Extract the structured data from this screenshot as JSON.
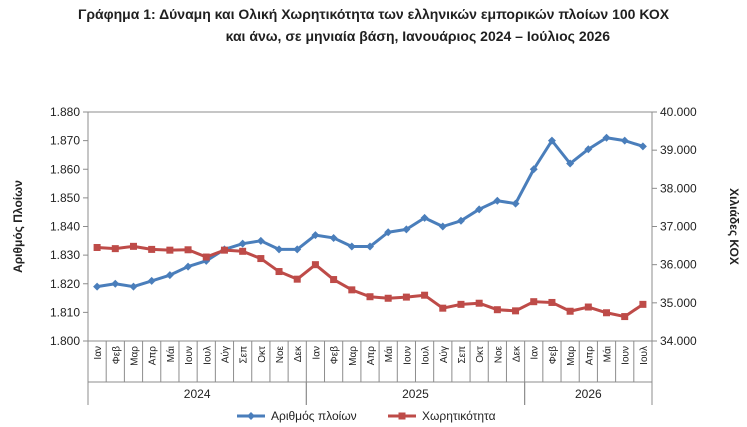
{
  "chart_data": {
    "type": "line",
    "title": "Γράφημα 1: Δύναμη και Ολική Χωρητικότητα των ελληνικών εμπορικών πλοίων 100 ΚΟΧ",
    "subtitle": "και άνω, σε μηνιαία βάση, Ιανουάριος 2024 – Ιούλιος 2026",
    "ylabel_left": "Αριθμός Πλοίων",
    "ylabel_right": "Χιλιάδες ΚΟΧ",
    "ylim_left": [
      1800,
      1880
    ],
    "ylim_right": [
      34000,
      40000
    ],
    "yticks_left": [
      "1.800",
      "1.810",
      "1.820",
      "1.830",
      "1.840",
      "1.850",
      "1.860",
      "1.870",
      "1.880"
    ],
    "yticks_right": [
      "34.000",
      "35.000",
      "36.000",
      "37.000",
      "38.000",
      "39.000",
      "40.000"
    ],
    "months": [
      "Ιαν",
      "Φεβ",
      "Μαρ",
      "Απρ",
      "Μάι",
      "Ιουν",
      "Ιουλ",
      "Αύγ",
      "Σεπ",
      "Οκτ",
      "Νοε",
      "Δεκ",
      "Ιαν",
      "Φεβ",
      "Μαρ",
      "Απρ",
      "Μάι",
      "Ιουν",
      "Ιουλ",
      "Αύγ",
      "Σεπ",
      "Οκτ",
      "Νοε",
      "Δεκ",
      "Ιαν",
      "Φεβ",
      "Μαρ",
      "Απρ",
      "Μάι",
      "Ιουν",
      "Ιουλ"
    ],
    "years": [
      {
        "label": "2024",
        "start": 0,
        "end": 11
      },
      {
        "label": "2025",
        "start": 12,
        "end": 23
      },
      {
        "label": "2026",
        "start": 24,
        "end": 30
      }
    ],
    "series": [
      {
        "name": "Αριθμός πλοίων",
        "axis": "left",
        "color": "#4a7ebb",
        "marker": "diamond",
        "values": [
          1819,
          1820,
          1819,
          1821,
          1823,
          1826,
          1828,
          1832,
          1834,
          1835,
          1832,
          1832,
          1837,
          1836,
          1833,
          1833,
          1838,
          1839,
          1843,
          1840,
          1842,
          1846,
          1849,
          1848,
          1860,
          1870,
          1862,
          1867,
          1871,
          1870,
          1868
        ]
      },
      {
        "name": "Χωρητικότητα",
        "axis": "right",
        "color": "#be4b48",
        "marker": "square",
        "values": [
          36450,
          36420,
          36480,
          36400,
          36380,
          36390,
          36200,
          36380,
          36350,
          36160,
          35820,
          35620,
          36000,
          35610,
          35340,
          35160,
          35120,
          35150,
          35200,
          34860,
          34960,
          34990,
          34820,
          34790,
          35030,
          35010,
          34780,
          34890,
          34740,
          34640,
          34960
        ]
      }
    ],
    "legend_position": "bottom",
    "grid": false
  }
}
